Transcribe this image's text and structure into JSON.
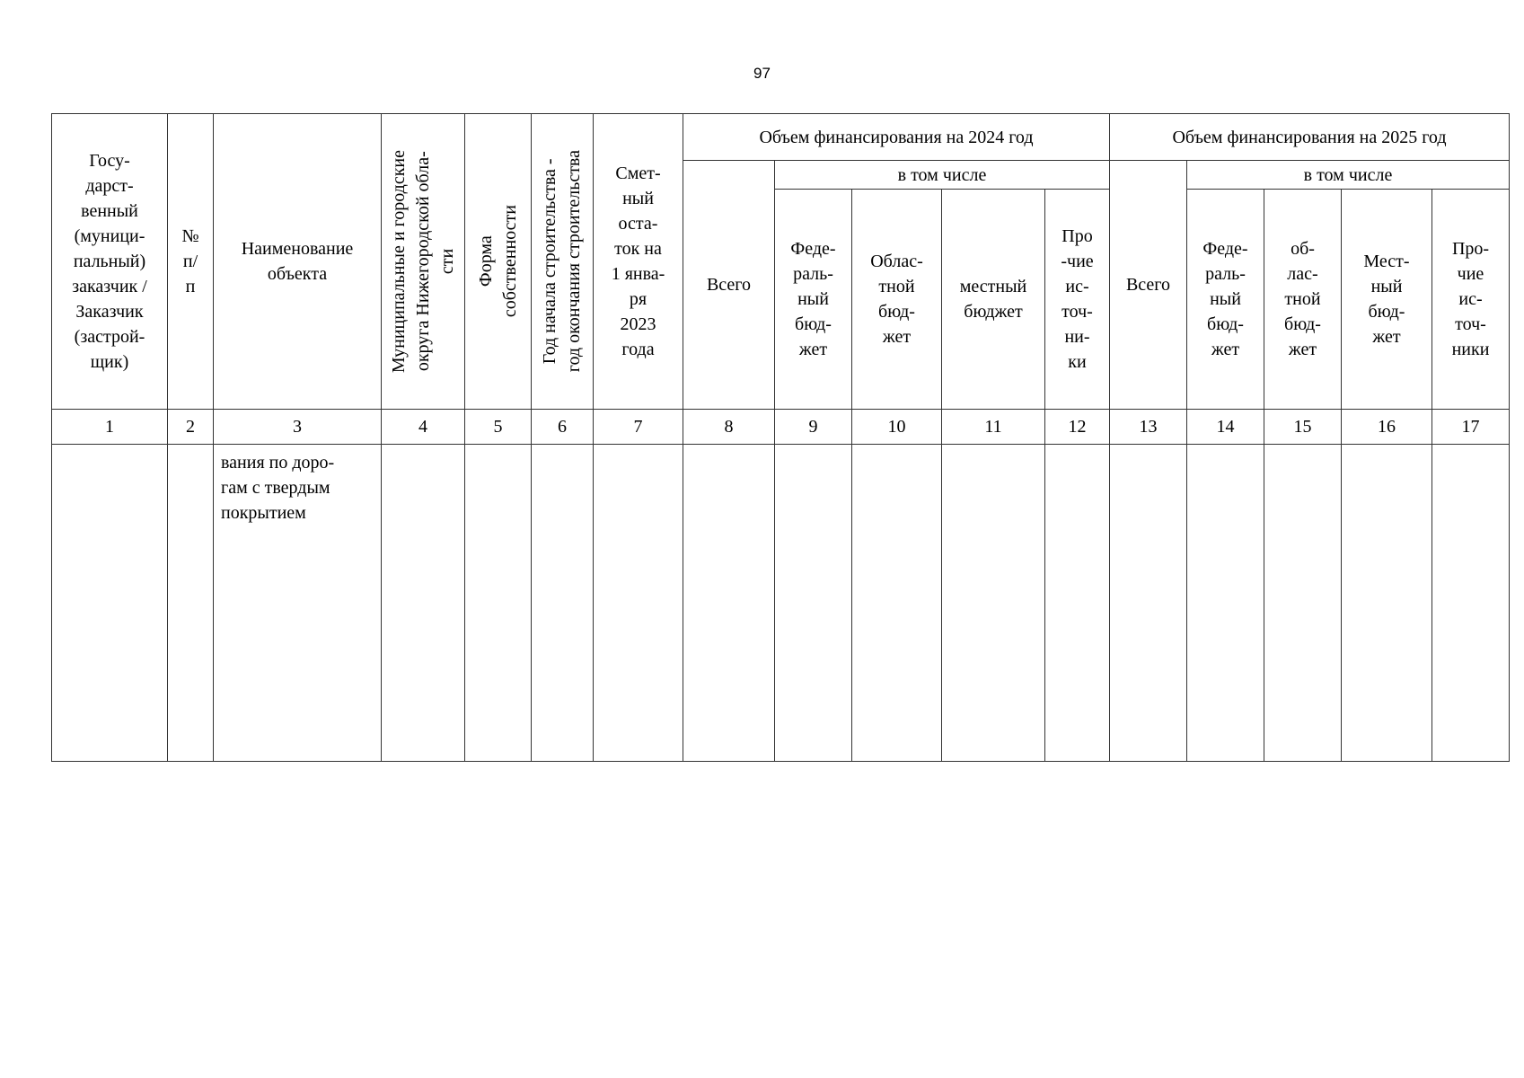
{
  "page_number": "97",
  "header": {
    "col1": "Госу-\nдарст-\nвенный\n(муници-\nпальный)\nзаказчик /\nЗаказчик\n(застрой-\nщик)",
    "col2": "№\nп/\nп",
    "col3": "Наименование\nобъекта",
    "col4": "Муниципальные и городские\nокруга Нижегородской обла-\nсти",
    "col5": "Форма\nсобственности",
    "col6": "Год начала строительства -\nгод окончания строительства",
    "col7": "Смет-\nный\nоста-\nток на\n1 янва-\nря\n2023\nгода",
    "group_2024": "Объем финансирования на 2024 год",
    "group_2025": "Объем финансирования на 2025 год",
    "including_2024": "в том числе",
    "including_2025": "в том числе",
    "col8": "Всего",
    "col9": "Феде-\nраль-\nный\nбюд-\nжет",
    "col10": "Облас-\nтной\nбюд-\nжет",
    "col11": "местный\nбюджет",
    "col12": "Про\n-чие\nис-\nточ-\nни-\nки",
    "col13": "Всего",
    "col14": "Феде-\nраль-\nный\nбюд-\nжет",
    "col15": "об-\nлас-\nтной\nбюд-\nжет",
    "col16": "Мест-\nный\nбюд-\nжет",
    "col17": "Про-\nчие\nис-\nточ-\nники"
  },
  "column_numbers": [
    "1",
    "2",
    "3",
    "4",
    "5",
    "6",
    "7",
    "8",
    "9",
    "10",
    "11",
    "12",
    "13",
    "14",
    "15",
    "16",
    "17"
  ],
  "rows": [
    {
      "name": "вания по доро-\nгам с твердым\nпокрытием"
    }
  ]
}
